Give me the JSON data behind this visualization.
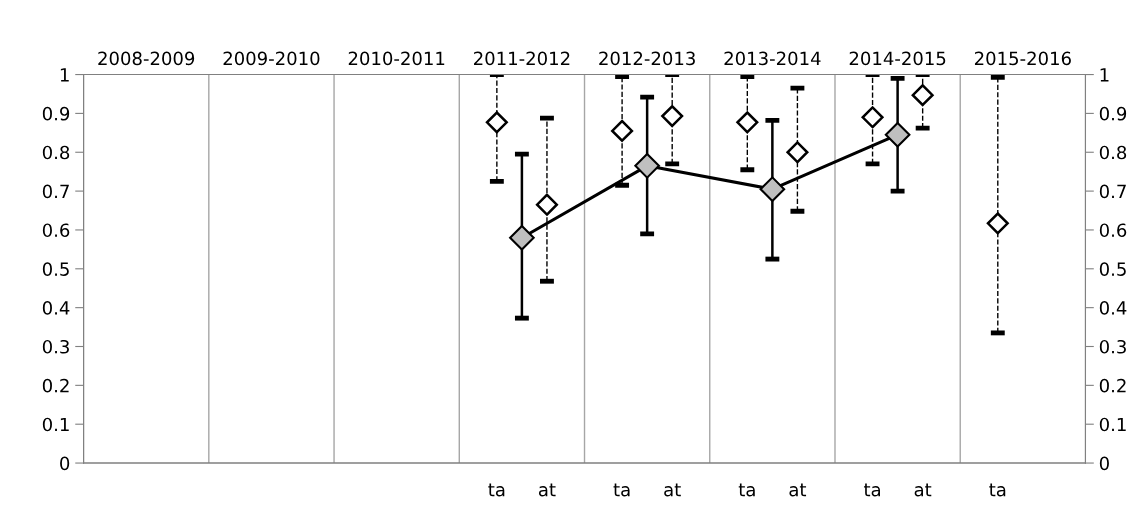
{
  "chart_data": {
    "type": "scatter",
    "categories": [
      null,
      null,
      null,
      null,
      null,
      null,
      null,
      null,
      null,
      null,
      null,
      null,
      null,
      null,
      null,
      null,
      "ta",
      null,
      "at",
      null,
      null,
      "ta",
      null,
      "at",
      null,
      null,
      "ta",
      null,
      "at",
      null,
      null,
      "ta",
      null,
      "at",
      null,
      null,
      "ta",
      null,
      null,
      null
    ],
    "annotations": [
      "2008-2009",
      "2009-2010",
      "2010-2011",
      "2011-2012",
      "2012-2013",
      "2013-2014",
      "2014-2015",
      "2015-2016"
    ],
    "ylim": [
      0,
      1
    ],
    "yticks": [
      0,
      0.1,
      0.2,
      0.3,
      0.4,
      0.5,
      0.6,
      0.7,
      0.8,
      0.9,
      1
    ],
    "y2lim": [
      0,
      1
    ],
    "y2ticks": [
      0,
      0.1,
      0.2,
      0.3,
      0.4,
      0.5,
      0.6,
      0.7,
      0.8,
      0.9,
      1
    ],
    "grid": "x",
    "marker": "diamond",
    "series": [
      {
        "color": "#ffffff",
        "values": [
          null,
          null,
          null,
          null,
          null,
          null,
          null,
          null,
          null,
          null,
          null,
          null,
          null,
          null,
          null,
          null,
          0.877,
          null,
          0.665,
          null,
          null,
          0.855,
          null,
          0.893,
          null,
          null,
          0.877,
          null,
          0.8,
          null,
          null,
          0.89,
          null,
          0.947,
          null,
          null,
          0.617,
          null,
          null,
          null
        ],
        "errors": [
          null,
          null,
          null,
          null,
          null,
          null,
          null,
          null,
          null,
          null,
          null,
          null,
          null,
          null,
          null,
          null,
          [
            0.725,
            1.0
          ],
          null,
          [
            0.468,
            0.888
          ],
          null,
          null,
          [
            0.715,
            0.995
          ],
          null,
          [
            0.77,
            1.0
          ],
          null,
          null,
          [
            0.755,
            0.995
          ],
          null,
          [
            0.648,
            0.965
          ],
          null,
          null,
          [
            0.77,
            1.0
          ],
          null,
          [
            0.862,
            1.0
          ],
          null,
          null,
          [
            0.335,
            0.993
          ],
          null,
          null,
          null
        ]
      },
      {
        "type": "line",
        "color": "#bfbfbf",
        "values": [
          null,
          null,
          null,
          null,
          null,
          null,
          null,
          null,
          null,
          null,
          null,
          null,
          null,
          null,
          null,
          null,
          null,
          0.58,
          null,
          null,
          null,
          null,
          0.765,
          null,
          null,
          null,
          null,
          0.705,
          null,
          null,
          null,
          null,
          0.845,
          null,
          null,
          null,
          null,
          null,
          null,
          null
        ],
        "errors": [
          null,
          null,
          null,
          null,
          null,
          null,
          null,
          null,
          null,
          null,
          null,
          null,
          null,
          null,
          null,
          null,
          null,
          [
            0.373,
            0.795
          ],
          null,
          null,
          null,
          null,
          [
            0.59,
            0.942
          ],
          null,
          null,
          null,
          null,
          [
            0.525,
            0.882
          ],
          null,
          null,
          null,
          null,
          [
            0.7,
            0.99
          ],
          null,
          null,
          null,
          null,
          null,
          null,
          null
        ]
      }
    ]
  }
}
